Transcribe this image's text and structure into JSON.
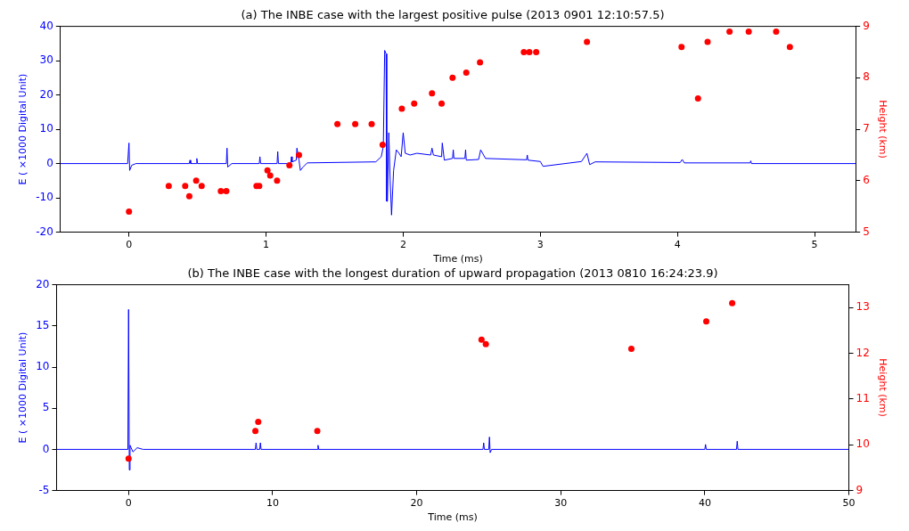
{
  "chart_data": [
    {
      "type": "line",
      "title": "(a) The INBE case with the largest positive pulse (2013 0901 12:10:57.5)",
      "xlabel": "Time (ms)",
      "ylabel": "E ( ×1000 Digital Unit)",
      "y2label": "Height (km)",
      "xlim": [
        -0.5,
        5.3
      ],
      "xticks": [
        0,
        1,
        2,
        3,
        4,
        5
      ],
      "ylim": [
        -20,
        40
      ],
      "yticks": [
        -20,
        -10,
        0,
        10,
        20,
        30,
        40
      ],
      "y2lim": [
        5,
        9
      ],
      "y2ticks": [
        5,
        6,
        7,
        8,
        9
      ],
      "grid": false,
      "legend": false,
      "series": [
        {
          "color": "#0000ff",
          "marker": "none",
          "x": [
            -0.5,
            -0.01,
            0,
            0.005,
            0.02,
            0.05,
            0.44,
            0.445,
            0.45,
            0.49,
            0.495,
            0.5,
            0.71,
            0.715,
            0.72,
            0.75,
            0.95,
            0.955,
            0.96,
            1.08,
            1.085,
            1.09,
            1.18,
            1.185,
            1.19,
            1.22,
            1.225,
            1.24,
            1.25,
            1.27,
            1.3,
            1.8,
            1.84,
            1.855,
            1.865,
            1.875,
            1.88,
            1.885,
            1.895,
            1.905,
            1.915,
            1.93,
            1.95,
            1.97,
            1.985,
            2.0,
            2.015,
            2.05,
            2.1,
            2.2,
            2.21,
            2.22,
            2.28,
            2.285,
            2.3,
            2.36,
            2.365,
            2.37,
            2.45,
            2.455,
            2.46,
            2.55,
            2.565,
            2.6,
            2.9,
            2.905,
            2.91,
            3.0,
            3.02,
            3.3,
            3.34,
            3.36,
            3.4,
            4.02,
            4.035,
            4.05,
            4.53,
            4.535,
            4.54,
            5.3
          ],
          "values": [
            0,
            0,
            6,
            -2,
            -0.5,
            0,
            0,
            1,
            0,
            0,
            1.5,
            0,
            0,
            4.5,
            -1,
            0,
            0,
            2,
            0,
            0,
            3.5,
            0,
            0,
            2,
            0.5,
            1,
            4.5,
            1,
            -2,
            -1,
            0.2,
            0.5,
            2,
            5,
            33,
            32,
            -11,
            -11,
            9,
            -5,
            -15,
            -2,
            4,
            3,
            2,
            9,
            3,
            2.5,
            3,
            2.5,
            4.5,
            2.5,
            2,
            6,
            1,
            1.5,
            4,
            1.5,
            1.5,
            4,
            1,
            1.2,
            4,
            1.5,
            1.1,
            2.5,
            1,
            0.6,
            -0.8,
            0.6,
            3,
            -0.3,
            0.5,
            0.3,
            1.2,
            0.2,
            0.2,
            0.8,
            0,
            0
          ]
        },
        {
          "type": "scatter",
          "color": "#ff0000",
          "marker": "circle",
          "axis": "y2",
          "x": [
            0,
            0.29,
            0.41,
            0.44,
            0.49,
            0.53,
            0.67,
            0.71,
            0.93,
            0.95,
            1.01,
            1.03,
            1.08,
            1.17,
            1.24,
            1.52,
            1.65,
            1.77,
            1.85,
            1.99,
            2.08,
            2.21,
            2.28,
            2.36,
            2.46,
            2.56,
            2.88,
            2.92,
            2.97,
            3.34,
            4.03,
            4.15,
            4.22,
            4.38,
            4.52,
            4.72,
            4.82
          ],
          "values": [
            5.4,
            5.9,
            5.9,
            5.7,
            6.0,
            5.9,
            5.8,
            5.8,
            5.9,
            5.9,
            6.2,
            6.1,
            6.0,
            6.3,
            6.5,
            7.1,
            7.1,
            7.1,
            6.7,
            7.4,
            7.5,
            7.7,
            7.5,
            8.0,
            8.1,
            8.3,
            8.5,
            8.5,
            8.5,
            8.7,
            8.6,
            7.6,
            8.7,
            8.9,
            8.9,
            8.9,
            8.6
          ]
        }
      ]
    },
    {
      "type": "line",
      "title": "(b) The INBE case with the longest duration of upward propagation (2013 0810 16:24:23.9)",
      "xlabel": "Time (ms)",
      "ylabel": "E ( ×1000 Digital Unit)",
      "y2label": "Height (km)",
      "xlim": [
        -5,
        50
      ],
      "xticks": [
        0,
        10,
        20,
        30,
        40,
        50
      ],
      "ylim": [
        -5,
        20
      ],
      "yticks": [
        -5,
        0,
        5,
        10,
        15,
        20
      ],
      "y2lim": [
        9,
        13.5
      ],
      "y2ticks": [
        9,
        10,
        11,
        12,
        13
      ],
      "grid": false,
      "legend": false,
      "series": [
        {
          "color": "#0000ff",
          "marker": "none",
          "x": [
            -5,
            -0.05,
            0,
            0.05,
            0.1,
            0.3,
            0.6,
            1,
            8.8,
            8.85,
            8.9,
            9.1,
            9.15,
            9.2,
            13.1,
            13.15,
            13.2,
            24.6,
            24.65,
            24.7,
            25,
            25.05,
            25.1,
            25.2,
            40,
            40.05,
            40.1,
            42.2,
            42.25,
            42.3,
            50
          ],
          "values": [
            0,
            0,
            17,
            -2.5,
            0.5,
            -0.3,
            0.2,
            0,
            0,
            0.8,
            0,
            0,
            0.8,
            0,
            0,
            0.5,
            0,
            0,
            0.8,
            0,
            0,
            1.5,
            -0.4,
            0,
            0,
            0.6,
            0,
            0,
            1,
            0,
            0
          ]
        },
        {
          "type": "scatter",
          "color": "#ff0000",
          "marker": "circle",
          "axis": "y2",
          "x": [
            0,
            8.8,
            9.0,
            13.1,
            24.5,
            24.8,
            34.9,
            40.1,
            41.9
          ],
          "values": [
            9.7,
            10.3,
            10.5,
            10.3,
            12.3,
            12.2,
            12.1,
            12.7,
            13.1
          ]
        }
      ]
    }
  ]
}
